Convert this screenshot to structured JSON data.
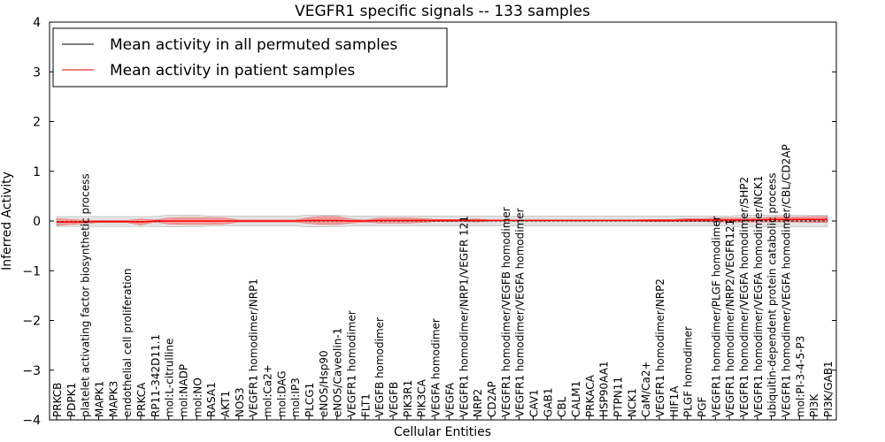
{
  "chart_data": {
    "type": "line",
    "title": "VEGFR1 specific signals -- 133 samples",
    "xlabel": "Cellular Entities",
    "ylabel": "Inferred Activity",
    "ylim": [
      -4,
      4
    ],
    "yticks": [
      "−4",
      "−3",
      "−2",
      "−1",
      "0",
      "1",
      "2",
      "3",
      "4"
    ],
    "grid": false,
    "legend_position": "top-left",
    "colors": {
      "permuted": "#000000",
      "patient": "#ff0000",
      "band_permuted": "#cccccc",
      "band_patient": "#ff6666"
    },
    "categories": [
      "PRKCB",
      "PDPK1",
      "platelet activating factor biosynthetic process",
      "MAPK1",
      "MAPK3",
      "endothelial cell proliferation",
      "PRKCA",
      "RP11-342D11.1",
      "mol:L-citrulline",
      "mol:NADP",
      "mol:NO",
      "RASA1",
      "AKT1",
      "NOS3",
      "VEGFR1 homodimer/NRP1",
      "mol:Ca2+",
      "mol:DAG",
      "mol:IP3",
      "PLCG1",
      "eNOS/Hsp90",
      "eNOS/Caveolin-1",
      "VEGFR1 homodimer",
      "FLT1",
      "VEGFB homodimer",
      "VEGFB",
      "PIK3R1",
      "PIK3CA",
      "VEGFA homodimer",
      "VEGFA",
      "VEGFR1 homodimer/NRP1/VEGFR 121",
      "NRP2",
      "CD2AP",
      "VEGFR1 homodimer/VEGFB homodimer",
      "VEGFR1 homodimer/VEGFA homodimer",
      "CAV1",
      "GAB1",
      "CBL",
      "CALM1",
      "PRKACA",
      "HSP90AA1",
      "PTPN11",
      "NCK1",
      "CaM/Ca2+",
      "VEGFR1 homodimer/NRP2",
      "HIF1A",
      "PLGF homodimer",
      "PGF",
      "VEGFR1 homodimer/PLGF homodimer",
      "VEGFR1 homodimer/NRP2/VEGFR121",
      "VEGFR1 homodimer/VEGFA homodimer/SHP2",
      "VEGFR1 homodimer/VEGFA homodimer/NCK1",
      "ubiquitin-dependent protein catabolic process",
      "VEGFR1 homodimer/VEGFA homodimer/CBL/CD2AP",
      "mol:PI-3-4-5-P3",
      "PI3K",
      "PI3K/GAB1"
    ],
    "series": [
      {
        "name": "Mean activity in all permuted samples",
        "values": [
          -0.01,
          -0.01,
          -0.01,
          -0.01,
          -0.01,
          -0.01,
          -0.01,
          -0.01,
          0,
          0,
          0,
          0,
          0,
          0,
          0,
          0,
          0,
          0,
          0,
          0,
          0,
          0,
          0,
          0,
          0,
          0,
          0,
          0,
          0,
          0,
          0,
          0,
          0,
          0,
          0,
          0,
          0,
          0,
          0,
          0,
          0,
          0,
          0,
          0,
          0,
          0,
          0,
          0,
          0,
          0,
          0,
          0,
          0,
          0,
          0,
          0
        ],
        "band": [
          0.1,
          0.1,
          0.1,
          0.1,
          0.1,
          0.1,
          0.1,
          0.1,
          0.12,
          0.12,
          0.12,
          0.1,
          0.1,
          0.1,
          0.1,
          0.1,
          0.1,
          0.1,
          0.12,
          0.12,
          0.12,
          0.1,
          0.1,
          0.1,
          0.1,
          0.1,
          0.1,
          0.1,
          0.1,
          0.1,
          0.1,
          0.1,
          0.1,
          0.1,
          0.1,
          0.1,
          0.1,
          0.1,
          0.1,
          0.1,
          0.1,
          0.1,
          0.1,
          0.1,
          0.1,
          0.1,
          0.1,
          0.1,
          0.1,
          0.12,
          0.12,
          0.12,
          0.12,
          0.12,
          0.12,
          0.12
        ]
      },
      {
        "name": "Mean activity in patient samples",
        "values": [
          -0.02,
          -0.02,
          -0.02,
          -0.01,
          -0.01,
          -0.01,
          -0.02,
          0,
          0,
          0,
          0,
          0,
          0,
          0,
          0,
          0,
          0,
          0,
          0.01,
          0.01,
          0.01,
          0,
          0,
          0.01,
          0.01,
          0.01,
          0.01,
          0.01,
          0.01,
          0.01,
          0.01,
          0.01,
          0.01,
          0.01,
          0.01,
          0.01,
          0.01,
          0.01,
          0.01,
          0.01,
          0.01,
          0.01,
          0.01,
          0.01,
          0.01,
          0.02,
          0.02,
          0.02,
          0.02,
          0.02,
          0.02,
          0.03,
          0.03,
          0.03,
          0.03,
          0.03
        ],
        "band": [
          0.07,
          0.05,
          0.03,
          0.02,
          0.02,
          0.02,
          0.06,
          0.02,
          0.06,
          0.07,
          0.07,
          0.07,
          0.06,
          0.02,
          0.02,
          0.02,
          0.02,
          0.02,
          0.06,
          0.08,
          0.08,
          0.04,
          0.02,
          0.05,
          0.05,
          0.05,
          0.04,
          0.02,
          0.02,
          0.02,
          0.03,
          0.01,
          0.01,
          0.01,
          0.01,
          0.01,
          0.01,
          0.01,
          0.01,
          0.01,
          0.01,
          0.01,
          0.02,
          0.02,
          0.02,
          0.03,
          0.03,
          0.04,
          0.04,
          0.04,
          0.04,
          0.05,
          0.05,
          0.05,
          0.06,
          0.06
        ]
      }
    ]
  }
}
